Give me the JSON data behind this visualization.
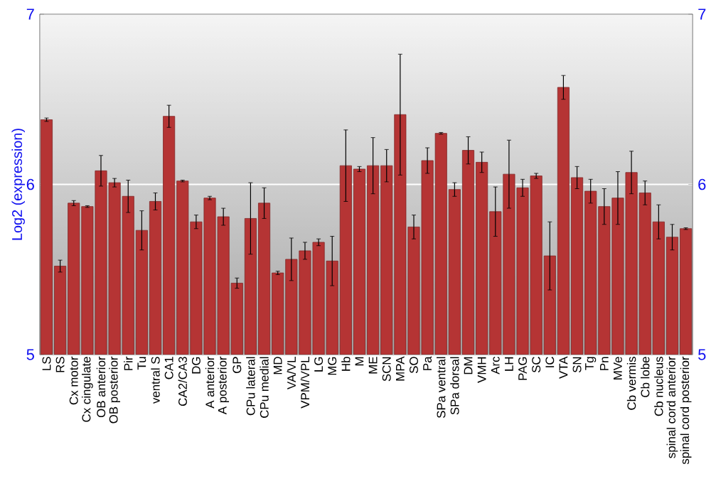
{
  "chart_data": {
    "type": "bar",
    "ylabel": "Log2 (expression)",
    "categories": [
      "LS",
      "RS",
      "Cx motor",
      "Cx cingulate",
      "OB anterior",
      "OB posterior",
      "Pir",
      "Tu",
      "ventral S",
      "CA1",
      "CA2/CA3",
      "DG",
      "A anterior",
      "A posterior",
      "GP",
      "CPu lateral",
      "CPu medial",
      "MD",
      "VA/VL",
      "VPM/VPL",
      "LG",
      "MG",
      "Hb",
      "M",
      "ME",
      "SCN",
      "MPA",
      "SO",
      "Pa",
      "SPa ventral",
      "SPa dorsal",
      "DM",
      "VMH",
      "Arc",
      "LH",
      "PAG",
      "SC",
      "IC",
      "VTA",
      "SN",
      "Tg",
      "Pn",
      "MVe",
      "Cb vermis",
      "Cb lobe",
      "Cb nucleus",
      "spinal cord anterior",
      "spinal cord posterior"
    ],
    "values": [
      6.38,
      5.52,
      5.89,
      5.87,
      6.08,
      6.01,
      5.93,
      5.73,
      5.9,
      6.4,
      6.02,
      5.78,
      5.92,
      5.81,
      5.42,
      5.8,
      5.89,
      5.48,
      5.56,
      5.61,
      5.66,
      5.55,
      6.11,
      6.09,
      6.11,
      6.11,
      6.41,
      5.75,
      6.14,
      6.3,
      5.97,
      6.2,
      6.13,
      5.84,
      6.06,
      5.98,
      6.05,
      5.58,
      6.57,
      6.04,
      5.96,
      5.87,
      5.92,
      6.07,
      5.95,
      5.78,
      5.69,
      5.74
    ],
    "errors": [
      0.01,
      0.035,
      0.015,
      0.005,
      0.09,
      0.025,
      0.095,
      0.115,
      0.05,
      0.065,
      0.005,
      0.04,
      0.01,
      0.05,
      0.03,
      0.21,
      0.09,
      0.01,
      0.125,
      0.05,
      0.02,
      0.145,
      0.21,
      0.015,
      0.165,
      0.095,
      0.355,
      0.07,
      0.075,
      0.005,
      0.04,
      0.08,
      0.06,
      0.145,
      0.2,
      0.05,
      0.015,
      0.2,
      0.07,
      0.065,
      0.07,
      0.105,
      0.155,
      0.125,
      0.07,
      0.1,
      0.075,
      0.005
    ],
    "color": "#b53434",
    "ylim": [
      5,
      7
    ],
    "yticks": [
      5,
      6,
      7
    ],
    "y2lim": [
      5,
      7
    ],
    "y2ticks": [
      5,
      6,
      7
    ],
    "grid": "y"
  }
}
